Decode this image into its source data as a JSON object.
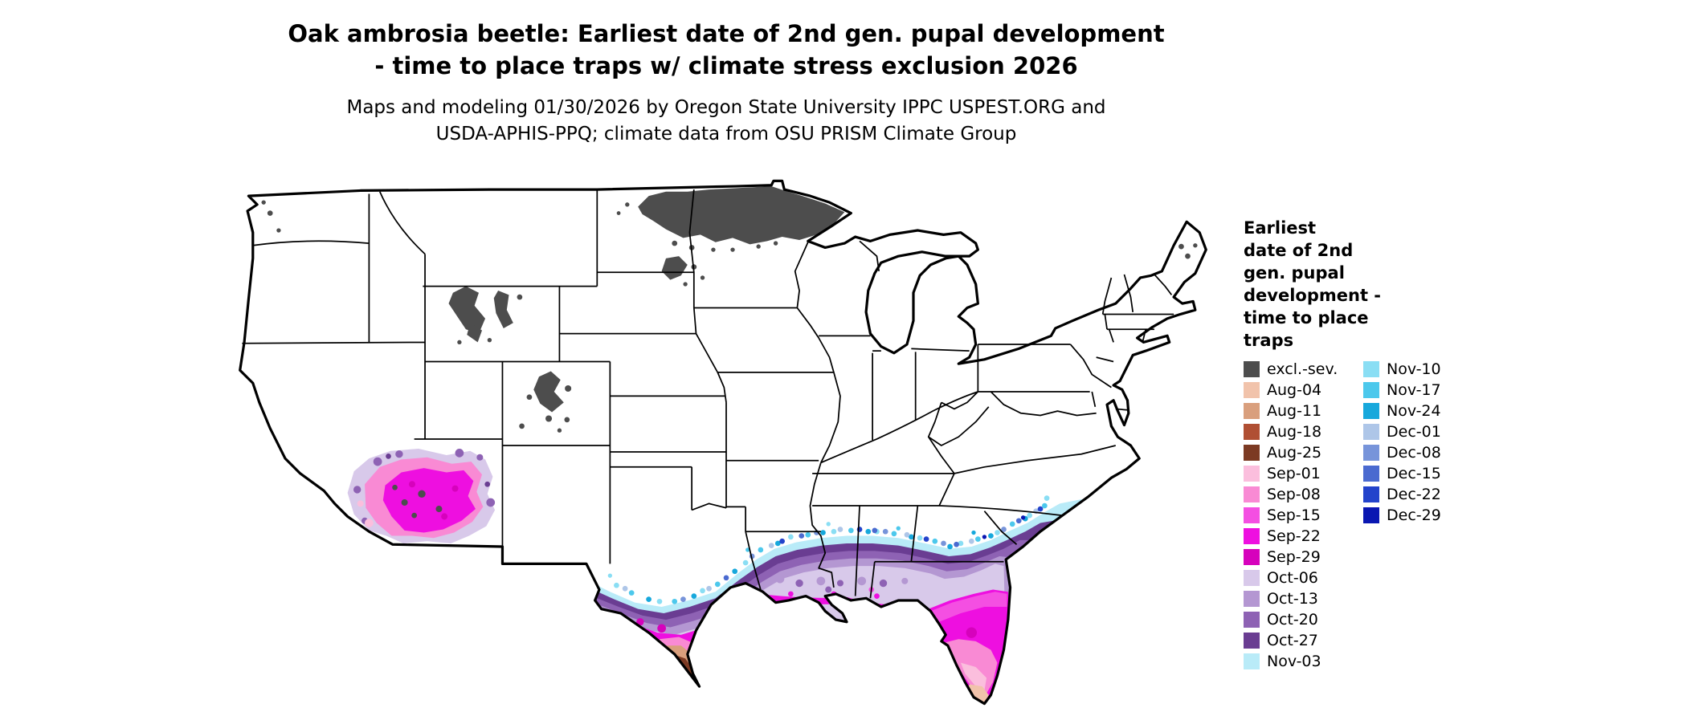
{
  "header": {
    "title_line1": "Oak ambrosia beetle: Earliest date of 2nd gen. pupal development",
    "title_line2": "- time to place traps w/ climate stress exclusion 2026",
    "subtitle_line1": "Maps and modeling 01/30/2026 by Oregon State University IPPC USPEST.ORG and",
    "subtitle_line2": "USDA-APHIS-PPQ; climate data from OSU PRISM Climate Group"
  },
  "legend": {
    "title": "Earliest\ndate of 2nd\ngen. pupal\ndevelopment -\ntime to place\ntraps",
    "column1": [
      {
        "label": "excl.-sev.",
        "color": "#4d4d4d"
      },
      {
        "label": "Aug-04",
        "color": "#f1c3ab"
      },
      {
        "label": "Aug-11",
        "color": "#d99f7d"
      },
      {
        "label": "Aug-18",
        "color": "#b04f33"
      },
      {
        "label": "Aug-25",
        "color": "#7c3a23"
      },
      {
        "label": "Sep-01",
        "color": "#fbbedd"
      },
      {
        "label": "Sep-08",
        "color": "#f98ad4"
      },
      {
        "label": "Sep-15",
        "color": "#f44fe2"
      },
      {
        "label": "Sep-22",
        "color": "#ee0fe0"
      },
      {
        "label": "Sep-29",
        "color": "#d602bc"
      },
      {
        "label": "Oct-06",
        "color": "#d8c9ea"
      },
      {
        "label": "Oct-13",
        "color": "#b497d2"
      },
      {
        "label": "Oct-20",
        "color": "#8e62b4"
      },
      {
        "label": "Oct-27",
        "color": "#6a3d92"
      },
      {
        "label": "Nov-03",
        "color": "#b9ebf8"
      }
    ],
    "column2": [
      {
        "label": "Nov-10",
        "color": "#8adef4"
      },
      {
        "label": "Nov-17",
        "color": "#4cc8ec"
      },
      {
        "label": "Nov-24",
        "color": "#17a8dc"
      },
      {
        "label": "Dec-01",
        "color": "#aec6e8"
      },
      {
        "label": "Dec-08",
        "color": "#7794da"
      },
      {
        "label": "Dec-15",
        "color": "#4a6ad0"
      },
      {
        "label": "Dec-22",
        "color": "#2343cb"
      },
      {
        "label": "Dec-29",
        "color": "#0a17b2"
      }
    ]
  },
  "map": {
    "background": "#ffffff",
    "land_fill": "#ffffff",
    "border_color": "#000000",
    "regions": [
      {
        "name": "climate-stress-exclusion-northern-minnesota",
        "value": "excl.-sev."
      },
      {
        "name": "climate-stress-exclusion-rockies",
        "value": "excl.-sev."
      },
      {
        "name": "climate-stress-exclusion-new-england",
        "value": "excl.-sev."
      },
      {
        "name": "arizona-development-zone",
        "value": "Sep-01 to Oct-27"
      },
      {
        "name": "gulf-coast-band",
        "value": "Sep-01 to Dec-29"
      },
      {
        "name": "south-texas-rio-grande-valley",
        "value": "Aug-11 to Aug-25"
      },
      {
        "name": "florida-peninsula",
        "value": "Aug-04 to Oct-13"
      },
      {
        "name": "atlantic-coast-fringe",
        "value": "Nov-03 to Dec-29"
      }
    ]
  }
}
